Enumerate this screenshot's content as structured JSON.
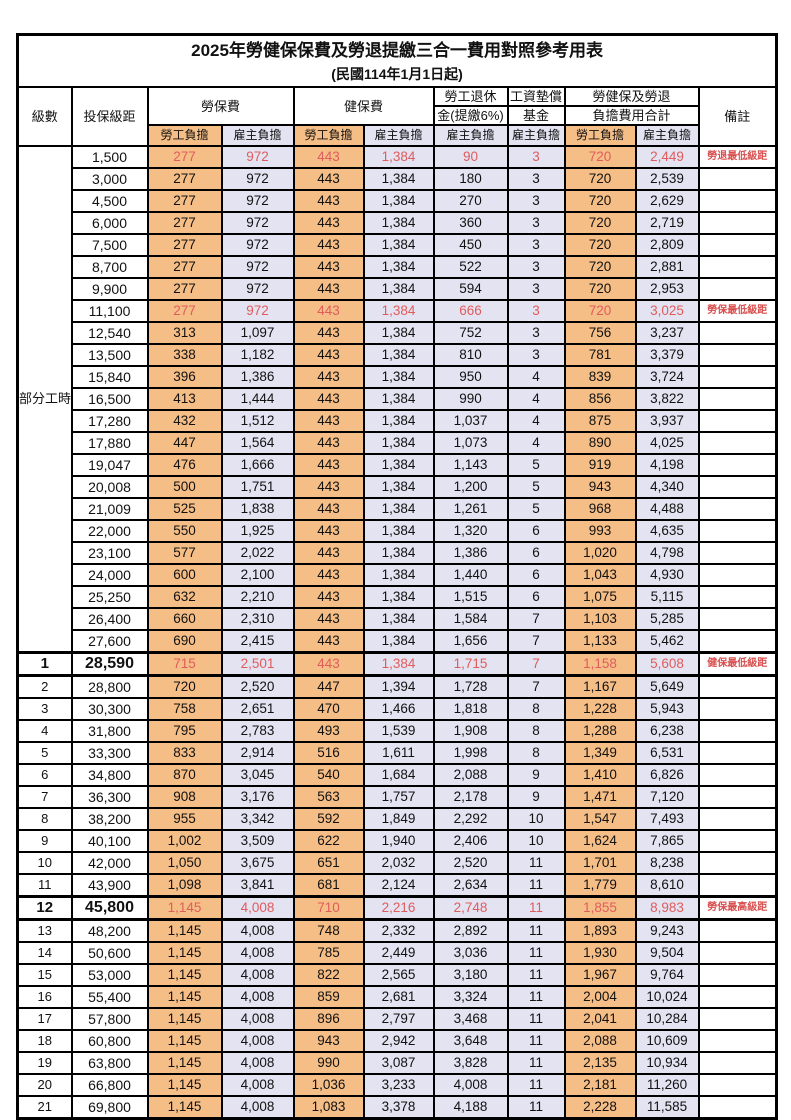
{
  "title": "2025年勞健保保費及勞退提繳三合一費用對照參考用表",
  "subtitle": "(民國114年1月1日起)",
  "header": {
    "level": "級數",
    "bracket": "投保級距",
    "labor_insurance": "勞保費",
    "health_insurance": "健保費",
    "pension_line1": "勞工退休",
    "pension_line2": "金(提繳6%)",
    "wage_fund_line1": "工資墊償",
    "wage_fund_line2": "基金",
    "total_line1": "勞健保及勞退",
    "total_line2": "負擔費用合計",
    "remark": "備註",
    "employee_share": "勞工負擔",
    "employer_share": "雇主負擔"
  },
  "colors": {
    "employee_col_bg": "#f6be87",
    "employer_col_bg": "#e4e3f2",
    "highlight_red": "#e05c5c",
    "remark_red": "#d94f4f",
    "grid": "#000000"
  },
  "chart_data": {
    "type": "table",
    "columns": [
      "級數",
      "投保級距",
      "勞保費-勞工負擔",
      "勞保費-雇主負擔",
      "健保費-勞工負擔",
      "健保費-雇主負擔",
      "勞工退休金(提繳6%)-雇主負擔",
      "工資墊償基金-雇主負擔",
      "勞健保及勞退負擔費用合計-勞工負擔",
      "勞健保及勞退負擔費用合計-雇主負擔",
      "備註"
    ],
    "group_label": "部分工時",
    "group_rowspan": 23,
    "rows": [
      {
        "level": "",
        "bracket": "1,500",
        "values": [
          "277",
          "972",
          "443",
          "1,384",
          "90",
          "3",
          "720",
          "2,449"
        ],
        "remark": "勞退最低級距",
        "red": true,
        "emph": false
      },
      {
        "level": "",
        "bracket": "3,000",
        "values": [
          "277",
          "972",
          "443",
          "1,384",
          "180",
          "3",
          "720",
          "2,539"
        ],
        "remark": "",
        "red": false,
        "emph": false
      },
      {
        "level": "",
        "bracket": "4,500",
        "values": [
          "277",
          "972",
          "443",
          "1,384",
          "270",
          "3",
          "720",
          "2,629"
        ],
        "remark": "",
        "red": false,
        "emph": false
      },
      {
        "level": "",
        "bracket": "6,000",
        "values": [
          "277",
          "972",
          "443",
          "1,384",
          "360",
          "3",
          "720",
          "2,719"
        ],
        "remark": "",
        "red": false,
        "emph": false
      },
      {
        "level": "",
        "bracket": "7,500",
        "values": [
          "277",
          "972",
          "443",
          "1,384",
          "450",
          "3",
          "720",
          "2,809"
        ],
        "remark": "",
        "red": false,
        "emph": false
      },
      {
        "level": "",
        "bracket": "8,700",
        "values": [
          "277",
          "972",
          "443",
          "1,384",
          "522",
          "3",
          "720",
          "2,881"
        ],
        "remark": "",
        "red": false,
        "emph": false
      },
      {
        "level": "",
        "bracket": "9,900",
        "values": [
          "277",
          "972",
          "443",
          "1,384",
          "594",
          "3",
          "720",
          "2,953"
        ],
        "remark": "",
        "red": false,
        "emph": false
      },
      {
        "level": "",
        "bracket": "11,100",
        "values": [
          "277",
          "972",
          "443",
          "1,384",
          "666",
          "3",
          "720",
          "3,025"
        ],
        "remark": "勞保最低級距",
        "red": true,
        "emph": false
      },
      {
        "level": "",
        "bracket": "12,540",
        "values": [
          "313",
          "1,097",
          "443",
          "1,384",
          "752",
          "3",
          "756",
          "3,237"
        ],
        "remark": "",
        "red": false,
        "emph": false
      },
      {
        "level": "",
        "bracket": "13,500",
        "values": [
          "338",
          "1,182",
          "443",
          "1,384",
          "810",
          "3",
          "781",
          "3,379"
        ],
        "remark": "",
        "red": false,
        "emph": false
      },
      {
        "level": "",
        "bracket": "15,840",
        "values": [
          "396",
          "1,386",
          "443",
          "1,384",
          "950",
          "4",
          "839",
          "3,724"
        ],
        "remark": "",
        "red": false,
        "emph": false
      },
      {
        "level": "",
        "bracket": "16,500",
        "values": [
          "413",
          "1,444",
          "443",
          "1,384",
          "990",
          "4",
          "856",
          "3,822"
        ],
        "remark": "",
        "red": false,
        "emph": false
      },
      {
        "level": "",
        "bracket": "17,280",
        "values": [
          "432",
          "1,512",
          "443",
          "1,384",
          "1,037",
          "4",
          "875",
          "3,937"
        ],
        "remark": "",
        "red": false,
        "emph": false
      },
      {
        "level": "",
        "bracket": "17,880",
        "values": [
          "447",
          "1,564",
          "443",
          "1,384",
          "1,073",
          "4",
          "890",
          "4,025"
        ],
        "remark": "",
        "red": false,
        "emph": false
      },
      {
        "level": "",
        "bracket": "19,047",
        "values": [
          "476",
          "1,666",
          "443",
          "1,384",
          "1,143",
          "5",
          "919",
          "4,198"
        ],
        "remark": "",
        "red": false,
        "emph": false
      },
      {
        "level": "",
        "bracket": "20,008",
        "values": [
          "500",
          "1,751",
          "443",
          "1,384",
          "1,200",
          "5",
          "943",
          "4,340"
        ],
        "remark": "",
        "red": false,
        "emph": false
      },
      {
        "level": "",
        "bracket": "21,009",
        "values": [
          "525",
          "1,838",
          "443",
          "1,384",
          "1,261",
          "5",
          "968",
          "4,488"
        ],
        "remark": "",
        "red": false,
        "emph": false
      },
      {
        "level": "",
        "bracket": "22,000",
        "values": [
          "550",
          "1,925",
          "443",
          "1,384",
          "1,320",
          "6",
          "993",
          "4,635"
        ],
        "remark": "",
        "red": false,
        "emph": false
      },
      {
        "level": "",
        "bracket": "23,100",
        "values": [
          "577",
          "2,022",
          "443",
          "1,384",
          "1,386",
          "6",
          "1,020",
          "4,798"
        ],
        "remark": "",
        "red": false,
        "emph": false
      },
      {
        "level": "",
        "bracket": "24,000",
        "values": [
          "600",
          "2,100",
          "443",
          "1,384",
          "1,440",
          "6",
          "1,043",
          "4,930"
        ],
        "remark": "",
        "red": false,
        "emph": false
      },
      {
        "level": "",
        "bracket": "25,250",
        "values": [
          "632",
          "2,210",
          "443",
          "1,384",
          "1,515",
          "6",
          "1,075",
          "5,115"
        ],
        "remark": "",
        "red": false,
        "emph": false
      },
      {
        "level": "",
        "bracket": "26,400",
        "values": [
          "660",
          "2,310",
          "443",
          "1,384",
          "1,584",
          "7",
          "1,103",
          "5,285"
        ],
        "remark": "",
        "red": false,
        "emph": false
      },
      {
        "level": "",
        "bracket": "27,600",
        "values": [
          "690",
          "2,415",
          "443",
          "1,384",
          "1,656",
          "7",
          "1,133",
          "5,462"
        ],
        "remark": "",
        "red": false,
        "emph": false
      },
      {
        "level": "1",
        "bracket": "28,590",
        "values": [
          "715",
          "2,501",
          "443",
          "1,384",
          "1,715",
          "7",
          "1,158",
          "5,608"
        ],
        "remark": "健保最低級距",
        "red": true,
        "emph": true
      },
      {
        "level": "2",
        "bracket": "28,800",
        "values": [
          "720",
          "2,520",
          "447",
          "1,394",
          "1,728",
          "7",
          "1,167",
          "5,649"
        ],
        "remark": "",
        "red": false,
        "emph": false
      },
      {
        "level": "3",
        "bracket": "30,300",
        "values": [
          "758",
          "2,651",
          "470",
          "1,466",
          "1,818",
          "8",
          "1,228",
          "5,943"
        ],
        "remark": "",
        "red": false,
        "emph": false
      },
      {
        "level": "4",
        "bracket": "31,800",
        "values": [
          "795",
          "2,783",
          "493",
          "1,539",
          "1,908",
          "8",
          "1,288",
          "6,238"
        ],
        "remark": "",
        "red": false,
        "emph": false
      },
      {
        "level": "5",
        "bracket": "33,300",
        "values": [
          "833",
          "2,914",
          "516",
          "1,611",
          "1,998",
          "8",
          "1,349",
          "6,531"
        ],
        "remark": "",
        "red": false,
        "emph": false
      },
      {
        "level": "6",
        "bracket": "34,800",
        "values": [
          "870",
          "3,045",
          "540",
          "1,684",
          "2,088",
          "9",
          "1,410",
          "6,826"
        ],
        "remark": "",
        "red": false,
        "emph": false
      },
      {
        "level": "7",
        "bracket": "36,300",
        "values": [
          "908",
          "3,176",
          "563",
          "1,757",
          "2,178",
          "9",
          "1,471",
          "7,120"
        ],
        "remark": "",
        "red": false,
        "emph": false
      },
      {
        "level": "8",
        "bracket": "38,200",
        "values": [
          "955",
          "3,342",
          "592",
          "1,849",
          "2,292",
          "10",
          "1,547",
          "7,493"
        ],
        "remark": "",
        "red": false,
        "emph": false
      },
      {
        "level": "9",
        "bracket": "40,100",
        "values": [
          "1,002",
          "3,509",
          "622",
          "1,940",
          "2,406",
          "10",
          "1,624",
          "7,865"
        ],
        "remark": "",
        "red": false,
        "emph": false
      },
      {
        "level": "10",
        "bracket": "42,000",
        "values": [
          "1,050",
          "3,675",
          "651",
          "2,032",
          "2,520",
          "11",
          "1,701",
          "8,238"
        ],
        "remark": "",
        "red": false,
        "emph": false
      },
      {
        "level": "11",
        "bracket": "43,900",
        "values": [
          "1,098",
          "3,841",
          "681",
          "2,124",
          "2,634",
          "11",
          "1,779",
          "8,610"
        ],
        "remark": "",
        "red": false,
        "emph": false
      },
      {
        "level": "12",
        "bracket": "45,800",
        "values": [
          "1,145",
          "4,008",
          "710",
          "2,216",
          "2,748",
          "11",
          "1,855",
          "8,983"
        ],
        "remark": "勞保最高級距",
        "red": true,
        "emph": true
      },
      {
        "level": "13",
        "bracket": "48,200",
        "values": [
          "1,145",
          "4,008",
          "748",
          "2,332",
          "2,892",
          "11",
          "1,893",
          "9,243"
        ],
        "remark": "",
        "red": false,
        "emph": false
      },
      {
        "level": "14",
        "bracket": "50,600",
        "values": [
          "1,145",
          "4,008",
          "785",
          "2,449",
          "3,036",
          "11",
          "1,930",
          "9,504"
        ],
        "remark": "",
        "red": false,
        "emph": false
      },
      {
        "level": "15",
        "bracket": "53,000",
        "values": [
          "1,145",
          "4,008",
          "822",
          "2,565",
          "3,180",
          "11",
          "1,967",
          "9,764"
        ],
        "remark": "",
        "red": false,
        "emph": false
      },
      {
        "level": "16",
        "bracket": "55,400",
        "values": [
          "1,145",
          "4,008",
          "859",
          "2,681",
          "3,324",
          "11",
          "2,004",
          "10,024"
        ],
        "remark": "",
        "red": false,
        "emph": false
      },
      {
        "level": "17",
        "bracket": "57,800",
        "values": [
          "1,145",
          "4,008",
          "896",
          "2,797",
          "3,468",
          "11",
          "2,041",
          "10,284"
        ],
        "remark": "",
        "red": false,
        "emph": false
      },
      {
        "level": "18",
        "bracket": "60,800",
        "values": [
          "1,145",
          "4,008",
          "943",
          "2,942",
          "3,648",
          "11",
          "2,088",
          "10,609"
        ],
        "remark": "",
        "red": false,
        "emph": false
      },
      {
        "level": "19",
        "bracket": "63,800",
        "values": [
          "1,145",
          "4,008",
          "990",
          "3,087",
          "3,828",
          "11",
          "2,135",
          "10,934"
        ],
        "remark": "",
        "red": false,
        "emph": false
      },
      {
        "level": "20",
        "bracket": "66,800",
        "values": [
          "1,145",
          "4,008",
          "1,036",
          "3,233",
          "4,008",
          "11",
          "2,181",
          "11,260"
        ],
        "remark": "",
        "red": false,
        "emph": false
      },
      {
        "level": "21",
        "bracket": "69,800",
        "values": [
          "1,145",
          "4,008",
          "1,083",
          "3,378",
          "4,188",
          "11",
          "2,228",
          "11,585"
        ],
        "remark": "",
        "red": false,
        "emph": false
      }
    ]
  }
}
